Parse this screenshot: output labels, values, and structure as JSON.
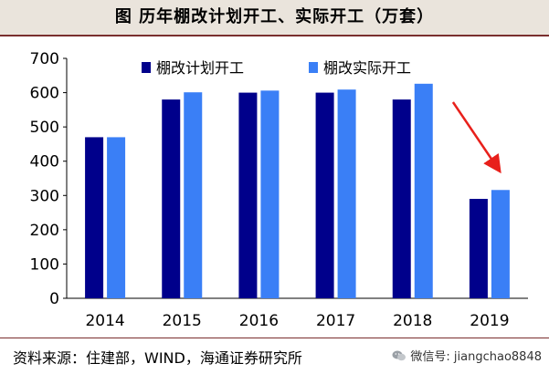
{
  "title": "图    历年棚改计划开工、实际开工（万套）",
  "source": "资料来源：住建部，WIND，海通证券研究所",
  "watermark": "微信号: jiangchao8848",
  "chart_data": {
    "type": "bar",
    "categories": [
      "2014",
      "2015",
      "2016",
      "2017",
      "2018",
      "2019"
    ],
    "series": [
      {
        "name": "棚改计划开工",
        "values": [
          470,
          580,
          600,
          600,
          580,
          290
        ],
        "color": "#00008b"
      },
      {
        "name": "棚改实际开工",
        "values": [
          470,
          601,
          606,
          609,
          626,
          316
        ],
        "color": "#3a7ff6"
      }
    ],
    "ylim": [
      0,
      700
    ],
    "yticks": [
      0,
      100,
      200,
      300,
      400,
      500,
      600,
      700
    ],
    "legend_position": "top",
    "grid": false,
    "annotation": {
      "type": "arrow",
      "color": "#e8201b",
      "target_category": "2019"
    }
  }
}
